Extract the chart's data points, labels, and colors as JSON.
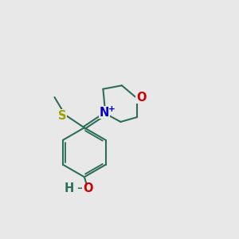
{
  "bg_color": "#e8e8e8",
  "bond_color": "#2d6e5a",
  "s_color": "#a0a000",
  "n_color": "#0000cc",
  "o_color": "#cc0000",
  "oh_o_color": "#cc0000",
  "oh_h_color": "#2d6e5a",
  "line_width": 1.5,
  "fig_size": [
    3.0,
    3.0
  ],
  "dpi": 100,
  "xlim": [
    0,
    10
  ],
  "ylim": [
    0,
    10
  ]
}
